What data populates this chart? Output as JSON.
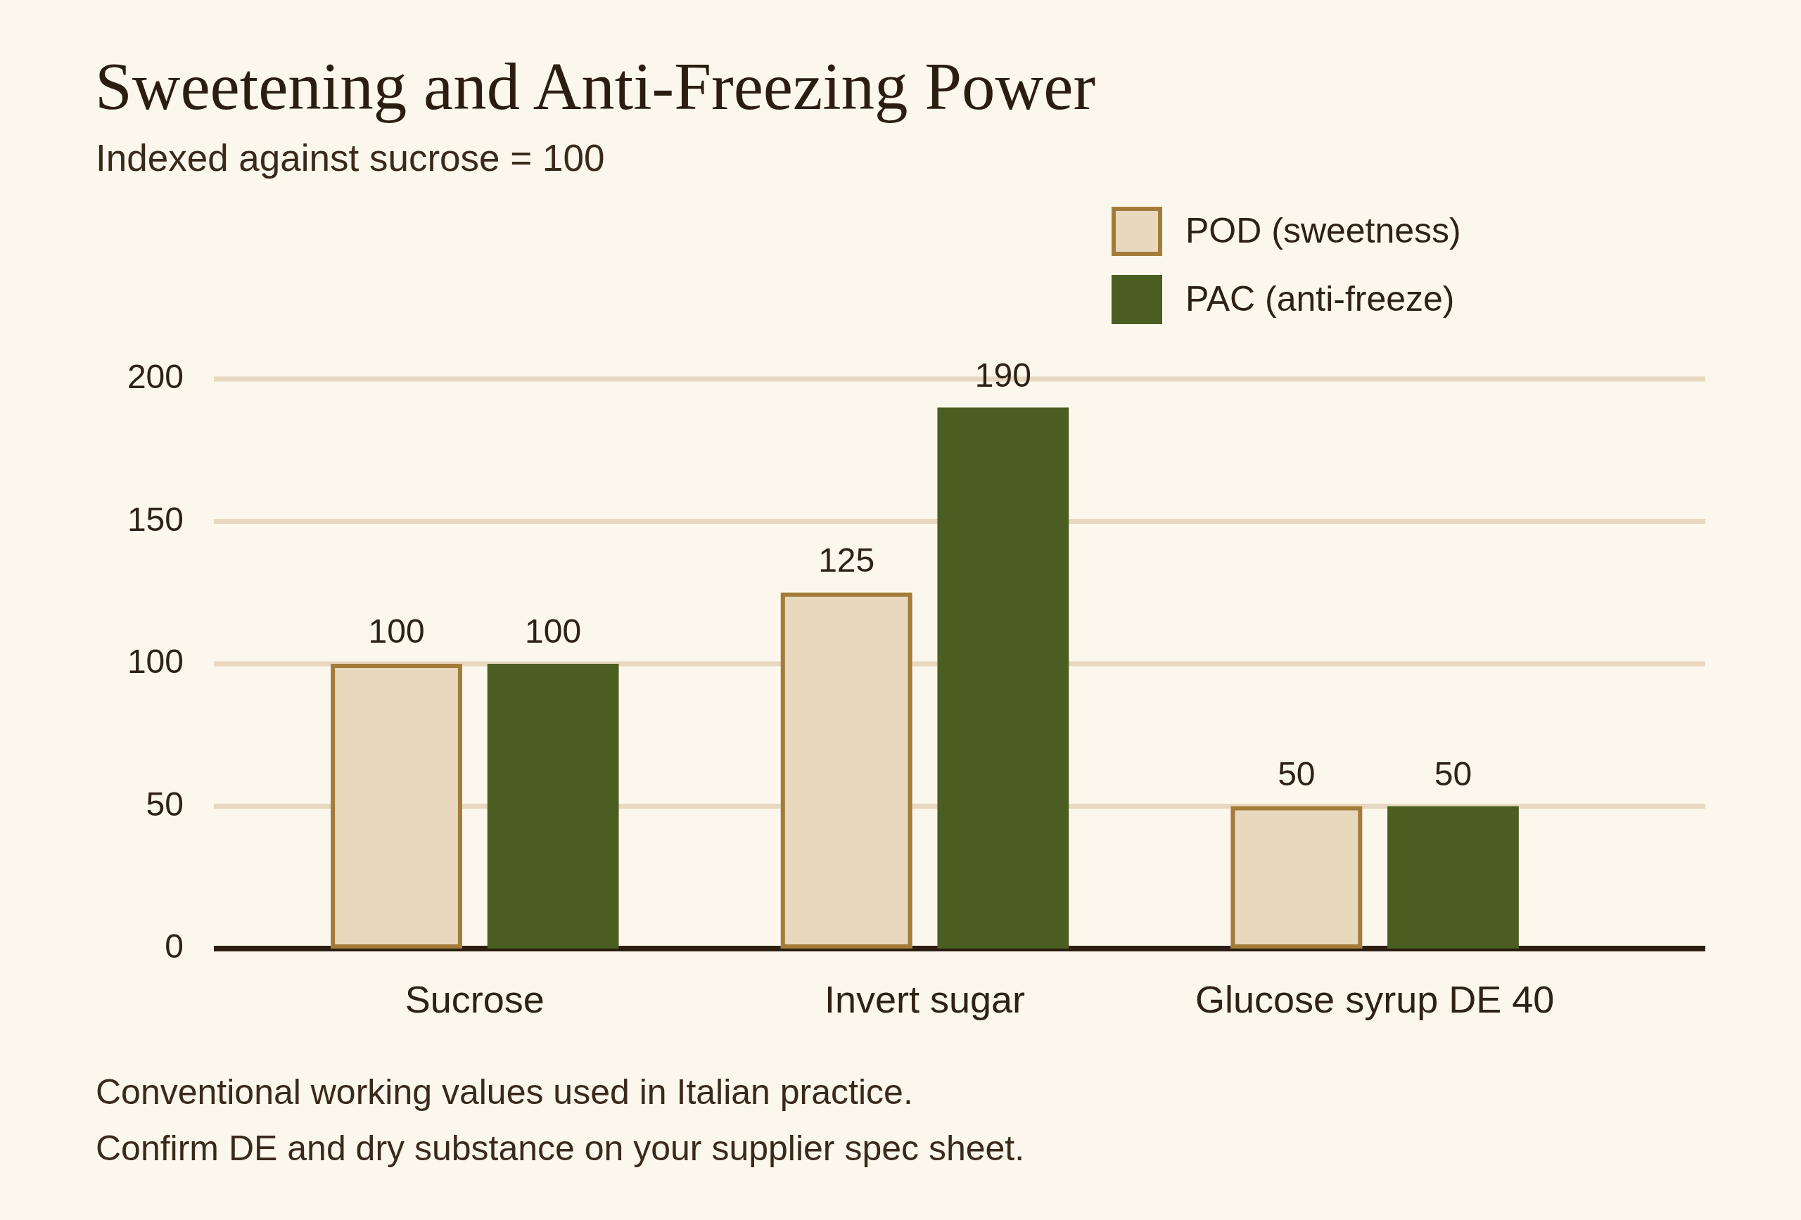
{
  "chart_data": {
    "type": "bar",
    "title": "Sweetening and Anti-Freezing Power",
    "subtitle": "Indexed against sucrose = 100",
    "categories": [
      "Sucrose",
      "Invert sugar",
      "Glucose syrup DE 40"
    ],
    "series": [
      {
        "name": "POD (sweetness)",
        "color": "#e8d9be",
        "values": [
          100,
          125,
          50
        ]
      },
      {
        "name": "PAC (anti-freeze)",
        "color": "#4b5e21",
        "values": [
          100,
          190,
          50
        ]
      }
    ],
    "ylim": [
      0,
      200
    ],
    "yticks": [
      0,
      50,
      100,
      150,
      200
    ],
    "grid": "y",
    "legend": "top right",
    "data_labels": true,
    "annotations": [
      "Conventional working values used in Italian practice.",
      "Confirm DE and dry substance on your supplier spec sheet."
    ]
  }
}
